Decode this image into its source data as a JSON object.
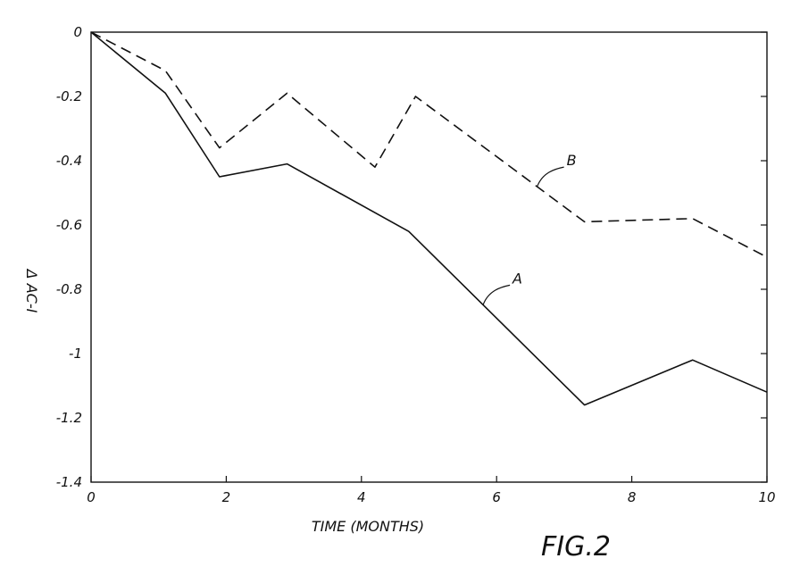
{
  "chart_data": {
    "type": "line",
    "xlabel": "TIME (MONTHS)",
    "ylabel": "Δ AC-I",
    "figure_label": "FIG.2",
    "xlim": [
      0,
      10
    ],
    "ylim": [
      -1.4,
      0
    ],
    "xticks": [
      0,
      2,
      4,
      6,
      8,
      10
    ],
    "yticks": [
      0,
      -0.2,
      -0.4,
      -0.6,
      -0.8,
      -1,
      -1.2,
      -1.4
    ],
    "grid": false,
    "series": [
      {
        "name": "A",
        "style": "solid",
        "color": "#111111",
        "x": [
          0,
          1.1,
          1.9,
          2.9,
          4.7,
          7.3,
          8.9,
          10
        ],
        "y": [
          0,
          -0.19,
          -0.45,
          -0.41,
          -0.62,
          -1.16,
          -1.02,
          -1.12
        ]
      },
      {
        "name": "B",
        "style": "dashed",
        "color": "#111111",
        "x": [
          0,
          1.1,
          1.9,
          2.9,
          4.2,
          4.8,
          7.3,
          8.9,
          10
        ],
        "y": [
          0,
          -0.12,
          -0.36,
          -0.19,
          -0.42,
          -0.2,
          -0.59,
          -0.58,
          -0.7
        ]
      }
    ],
    "annotations": [
      {
        "text": "A",
        "series": "A",
        "at_x": 5.8
      },
      {
        "text": "B",
        "series": "B",
        "at_x": 6.6
      }
    ]
  }
}
